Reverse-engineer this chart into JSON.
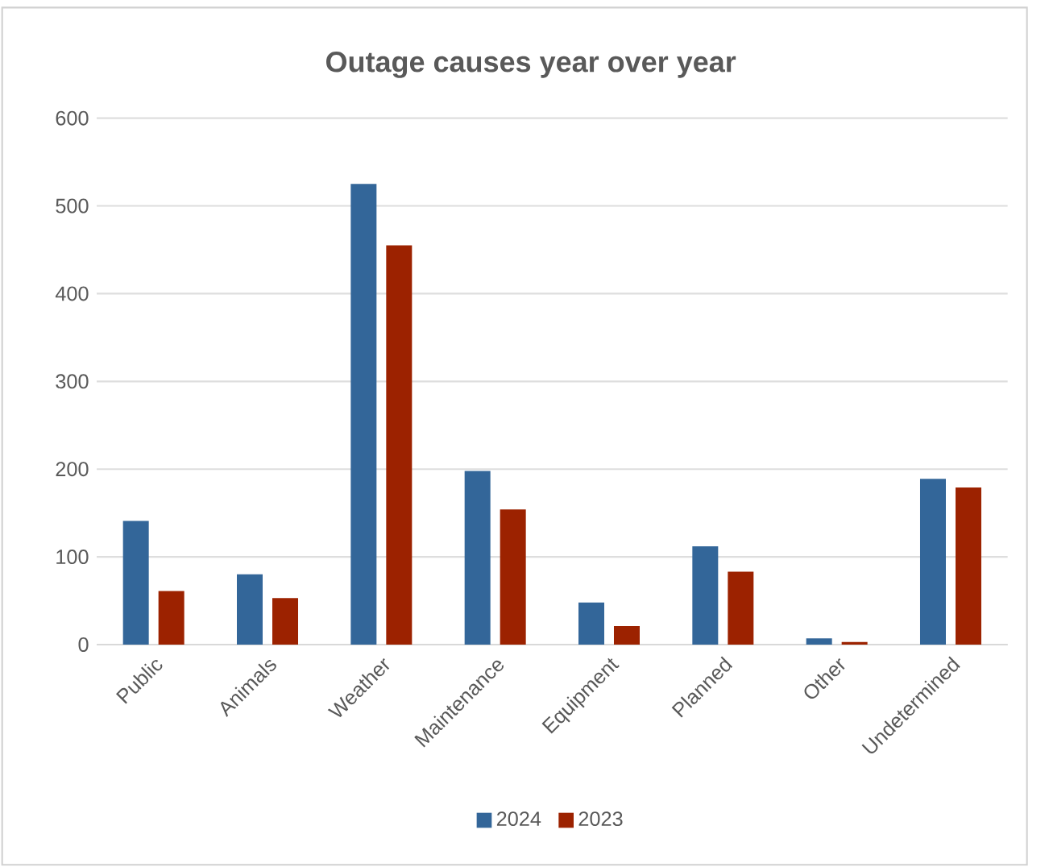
{
  "chart_data": {
    "type": "bar",
    "title": "Outage causes year over year",
    "categories": [
      "Public",
      "Animals",
      "Weather",
      "Maintenance",
      "Equipment",
      "Planned",
      "Other",
      "Undetermined"
    ],
    "series": [
      {
        "name": "2024",
        "color": "#336699",
        "values": [
          141,
          80,
          525,
          198,
          48,
          112,
          7,
          189
        ]
      },
      {
        "name": "2023",
        "color": "#9c2200",
        "values": [
          61,
          53,
          455,
          154,
          21,
          83,
          3,
          179
        ]
      }
    ],
    "ylim": [
      0,
      600
    ],
    "yticks": [
      0,
      100,
      200,
      300,
      400,
      500,
      600
    ],
    "grid": "y",
    "legend": "bottom"
  }
}
